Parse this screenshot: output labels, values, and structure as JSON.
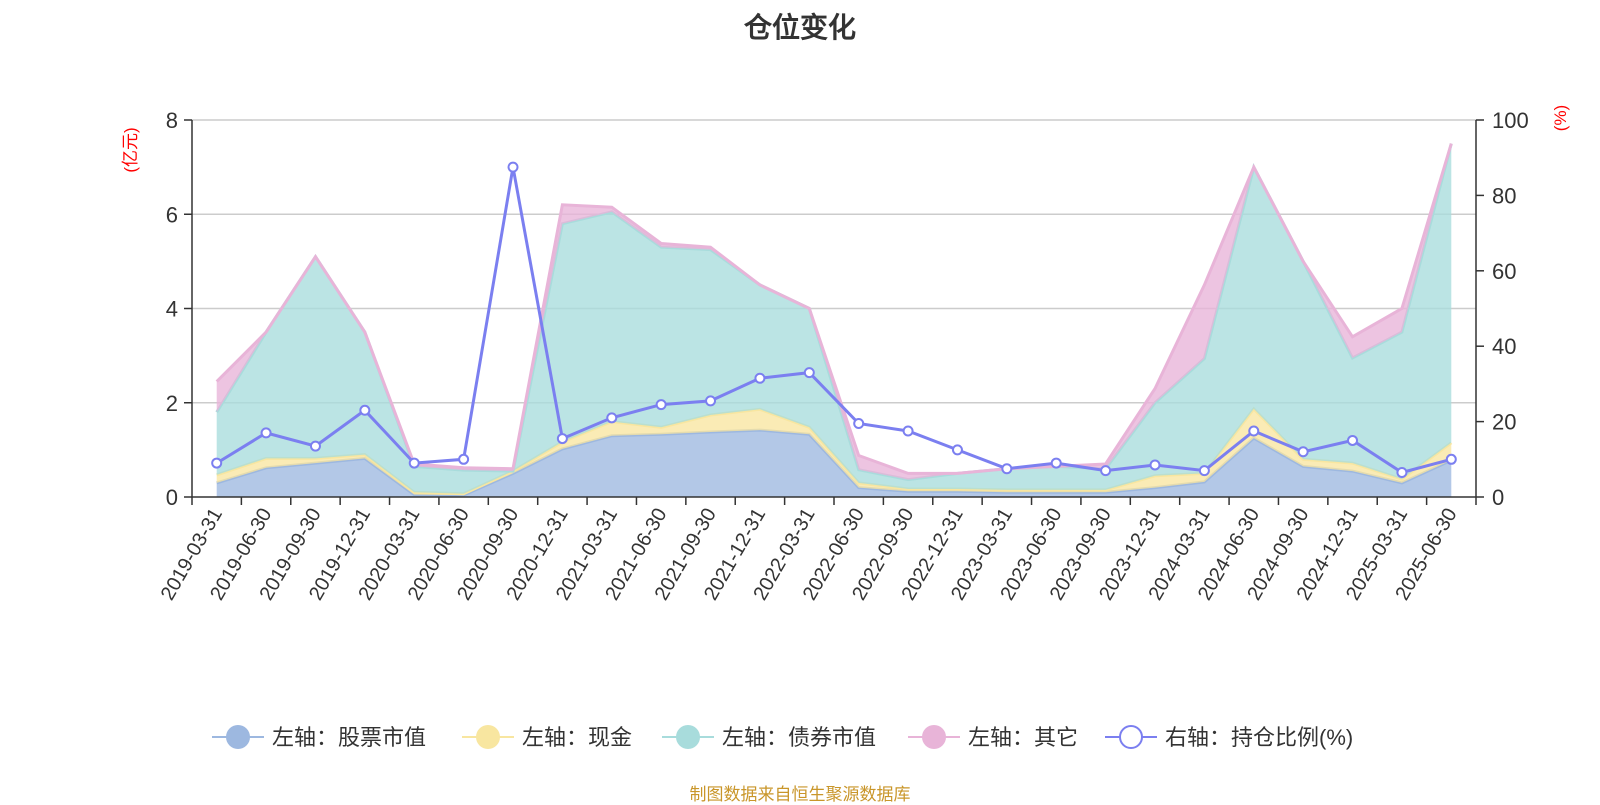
{
  "title": "仓位变化",
  "source_note": "制图数据来自恒生聚源数据库",
  "chart_data": {
    "type": "area",
    "title": "仓位变化",
    "left_axis_unit": "(亿元)",
    "right_axis_unit": "(%)",
    "left_ylim": [
      0,
      8
    ],
    "left_yticks": [
      "0",
      "2",
      "4",
      "6",
      "8"
    ],
    "right_ylim": [
      0,
      100
    ],
    "right_yticks": [
      "0",
      "20",
      "40",
      "60",
      "80",
      "100"
    ],
    "grid": true,
    "legend_position": "bottom",
    "categories": [
      "2019-03-31",
      "2019-06-30",
      "2019-09-30",
      "2019-12-31",
      "2020-03-31",
      "2020-06-30",
      "2020-09-30",
      "2020-12-31",
      "2021-03-31",
      "2021-06-30",
      "2021-09-30",
      "2021-12-31",
      "2022-03-31",
      "2022-06-30",
      "2022-09-30",
      "2022-12-31",
      "2023-03-31",
      "2023-06-30",
      "2023-09-30",
      "2023-12-31",
      "2024-03-31",
      "2024-06-30",
      "2024-09-30",
      "2024-12-31",
      "2025-03-31",
      "2025-06-30"
    ],
    "series": [
      {
        "name": "左轴：股票市值",
        "axis": "left",
        "stacked": true,
        "color": "#9db8e0",
        "values": [
          0.3,
          0.62,
          0.72,
          0.82,
          0.05,
          0.04,
          0.5,
          1.02,
          1.3,
          1.33,
          1.38,
          1.42,
          1.33,
          0.2,
          0.12,
          0.12,
          0.1,
          0.1,
          0.1,
          0.2,
          0.32,
          1.25,
          0.65,
          0.55,
          0.3,
          0.78
        ]
      },
      {
        "name": "左轴：现金",
        "axis": "left",
        "stacked": true,
        "color": "#f8e6a0",
        "values": [
          0.17,
          0.2,
          0.1,
          0.08,
          0.05,
          0.03,
          0.05,
          0.15,
          0.3,
          0.15,
          0.36,
          0.44,
          0.15,
          0.1,
          0.05,
          0.05,
          0.05,
          0.05,
          0.05,
          0.25,
          0.18,
          0.62,
          0.15,
          0.17,
          0.08,
          0.37
        ]
      },
      {
        "name": "左轴：债券市值",
        "axis": "left",
        "stacked": true,
        "color": "#a8dcdc",
        "values": [
          1.33,
          2.68,
          4.28,
          2.6,
          0.55,
          0.5,
          0.0,
          4.63,
          4.45,
          3.82,
          3.51,
          2.64,
          2.52,
          0.28,
          0.2,
          0.33,
          0.45,
          0.5,
          0.45,
          1.55,
          2.44,
          5.13,
          4.2,
          2.23,
          3.12,
          6.35
        ]
      },
      {
        "name": "左轴：其它",
        "axis": "left",
        "stacked": true,
        "color": "#e8b4d8",
        "values": [
          0.65,
          0.0,
          0.0,
          0.0,
          0.05,
          0.05,
          0.05,
          0.4,
          0.1,
          0.08,
          0.05,
          0.0,
          0.0,
          0.3,
          0.13,
          0.0,
          0.0,
          0.0,
          0.1,
          0.3,
          1.56,
          0.0,
          0.0,
          0.45,
          0.5,
          0.0
        ]
      },
      {
        "name": "右轴：持仓比例(%)",
        "axis": "right",
        "type": "line",
        "color": "#7b7ff0",
        "values": [
          9,
          17,
          13.5,
          23,
          9,
          10,
          87.5,
          15.5,
          21,
          24.5,
          25.5,
          31.5,
          33,
          19.5,
          17.5,
          12.5,
          7.5,
          9,
          7,
          8.5,
          7,
          17.5,
          12,
          15,
          6.5,
          10
        ]
      }
    ]
  }
}
